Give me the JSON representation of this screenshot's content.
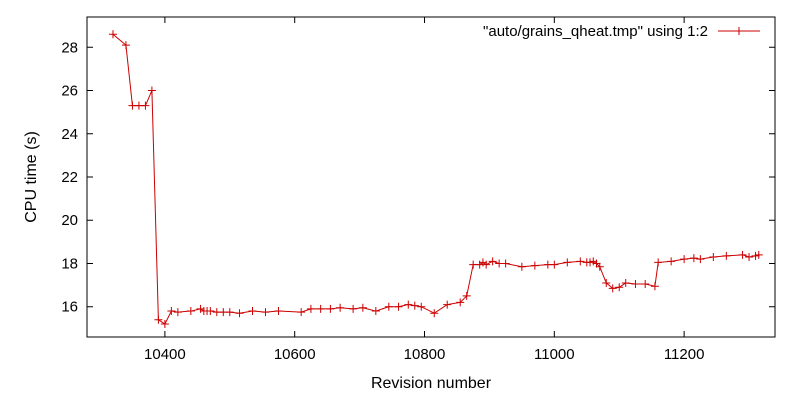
{
  "chart_data": {
    "type": "line",
    "title": "",
    "xlabel": "Revision number",
    "ylabel": "CPU time (s)",
    "xlim": [
      10280,
      11340
    ],
    "ylim": [
      14.6,
      29.4
    ],
    "xticks": [
      10400,
      10600,
      10800,
      11000,
      11200
    ],
    "yticks": [
      16,
      18,
      20,
      22,
      24,
      26,
      28
    ],
    "grid": false,
    "legend_position": "top-right",
    "series": [
      {
        "name": "\"auto/grains_qheat.tmp\" using 1:2",
        "color": "#cc0000",
        "marker": "plus",
        "x": [
          10320,
          10340,
          10350,
          10360,
          10370,
          10380,
          10390,
          10400,
          10410,
          10420,
          10440,
          10455,
          10460,
          10465,
          10470,
          10480,
          10490,
          10500,
          10515,
          10535,
          10555,
          10575,
          10610,
          10625,
          10640,
          10655,
          10670,
          10690,
          10705,
          10725,
          10745,
          10760,
          10775,
          10785,
          10795,
          10815,
          10835,
          10855,
          10865,
          10875,
          10885,
          10890,
          10895,
          10905,
          10915,
          10925,
          10950,
          10970,
          10990,
          11000,
          11020,
          11040,
          11050,
          11055,
          11060,
          11065,
          11070,
          11080,
          11090,
          11100,
          11110,
          11125,
          11140,
          11155,
          11160,
          11180,
          11200,
          11215,
          11225,
          11245,
          11265,
          11290,
          11300,
          11310,
          11315
        ],
        "y": [
          28.6,
          28.1,
          25.3,
          25.3,
          25.3,
          26.0,
          15.4,
          15.2,
          15.8,
          15.75,
          15.8,
          15.9,
          15.8,
          15.8,
          15.8,
          15.75,
          15.75,
          15.75,
          15.7,
          15.8,
          15.75,
          15.8,
          15.75,
          15.9,
          15.9,
          15.9,
          15.95,
          15.9,
          15.95,
          15.8,
          16.0,
          16.0,
          16.1,
          16.05,
          16.0,
          15.7,
          16.1,
          16.2,
          16.5,
          17.95,
          17.95,
          18.05,
          17.95,
          18.1,
          18.0,
          18.0,
          17.85,
          17.9,
          17.95,
          17.95,
          18.05,
          18.1,
          18.05,
          18.05,
          18.1,
          18.0,
          17.85,
          17.1,
          16.85,
          16.9,
          17.1,
          17.05,
          17.05,
          16.95,
          18.05,
          18.1,
          18.2,
          18.25,
          18.2,
          18.3,
          18.35,
          18.4,
          18.3,
          18.35,
          18.4
        ]
      }
    ]
  }
}
